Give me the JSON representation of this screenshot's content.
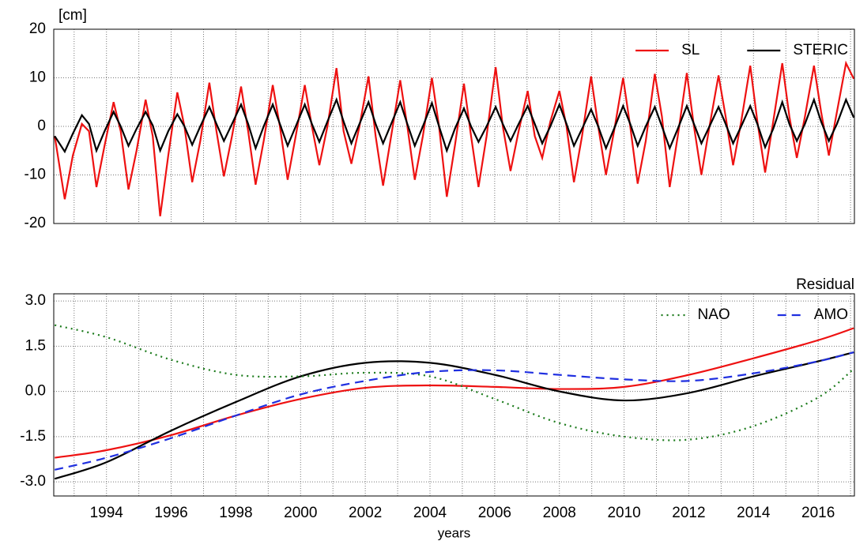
{
  "chart_data": [
    {
      "type": "line",
      "ylabel": "[cm]",
      "xlim": [
        1992.37,
        2017.12
      ],
      "ylim": [
        -20,
        20
      ],
      "yticks": [
        -20,
        -10,
        0,
        10,
        20
      ],
      "xticks": [
        1994,
        1996,
        1998,
        2000,
        2002,
        2004,
        2006,
        2008,
        2010,
        2012,
        2014,
        2016
      ],
      "x_minor_grid": [
        1993,
        1995,
        1997,
        1999,
        2001,
        2003,
        2005,
        2007,
        2009,
        2011,
        2013,
        2015,
        2017
      ],
      "show_xtick_labels": false,
      "grid": true,
      "legend": "upper right",
      "smooth": false,
      "x": [
        1992.4,
        1992.71,
        1992.96,
        1993.24,
        1993.46,
        1993.69,
        1993.94,
        1994.22,
        1994.44,
        1994.68,
        1994.93,
        1995.21,
        1995.43,
        1995.66,
        1995.91,
        1996.19,
        1996.41,
        1996.65,
        1996.9,
        1997.18,
        1997.4,
        1997.63,
        1997.88,
        1998.16,
        1998.38,
        1998.61,
        1998.86,
        1999.14,
        1999.36,
        1999.6,
        1999.85,
        2000.13,
        2000.35,
        2000.58,
        2000.83,
        2001.11,
        2001.33,
        2001.57,
        2001.82,
        2002.1,
        2002.32,
        2002.55,
        2002.8,
        2003.08,
        2003.3,
        2003.53,
        2003.78,
        2004.06,
        2004.28,
        2004.52,
        2004.77,
        2005.05,
        2005.27,
        2005.5,
        2005.75,
        2006.03,
        2006.25,
        2006.49,
        2006.74,
        2007.02,
        2007.24,
        2007.47,
        2007.72,
        2008.0,
        2008.22,
        2008.45,
        2008.7,
        2008.98,
        2009.2,
        2009.44,
        2009.69,
        2009.97,
        2010.19,
        2010.42,
        2010.67,
        2010.95,
        2011.17,
        2011.41,
        2011.66,
        2011.94,
        2012.16,
        2012.39,
        2012.64,
        2012.92,
        2013.14,
        2013.37,
        2013.62,
        2013.9,
        2014.12,
        2014.36,
        2014.61,
        2014.89,
        2015.11,
        2015.34,
        2015.59,
        2015.87,
        2016.09,
        2016.33,
        2016.58,
        2016.86,
        2017.1
      ],
      "series": [
        {
          "name": "SL",
          "color": "#ee1111",
          "linestyle": "solid",
          "values": [
            -2,
            -15,
            -6,
            0.5,
            -1,
            -12.5,
            -4,
            5,
            -1,
            -13,
            -5,
            5.5,
            -2,
            -18.5,
            -6,
            7,
            0,
            -11.5,
            -3,
            9,
            -1,
            -10.3,
            -2,
            8.2,
            -1,
            -12,
            -3,
            8.5,
            0,
            -11,
            -2,
            8.5,
            0,
            -8,
            0,
            12,
            -1,
            -7.7,
            0,
            10.3,
            -2,
            -12.2,
            -2,
            9.5,
            0,
            -11,
            -2,
            10,
            0,
            -14.5,
            -4,
            8.8,
            -2,
            -12.5,
            -2,
            12.2,
            0,
            -9.2,
            -1,
            7.3,
            -2,
            -6.5,
            1,
            7.3,
            0,
            -11.5,
            -2,
            10.3,
            0,
            -10,
            -1,
            10,
            0,
            -11.8,
            -3,
            10.8,
            2,
            -12.5,
            -2,
            11,
            0,
            -10,
            0,
            10.5,
            2,
            -8,
            1,
            12.5,
            1,
            -9.5,
            1,
            13,
            2,
            -6.5,
            2,
            12.5,
            3,
            -6,
            3,
            13,
            9.8
          ]
        },
        {
          "name": "STERIC",
          "color": "#000000",
          "linestyle": "solid",
          "values": [
            -2,
            -5.2,
            -1.5,
            2.3,
            0.5,
            -5,
            -1,
            3,
            0,
            -4,
            -0.5,
            3,
            0.2,
            -5,
            -1,
            2.5,
            0,
            -3.8,
            0,
            4,
            0.5,
            -3,
            0.5,
            4.5,
            0.5,
            -4.5,
            0,
            4.5,
            0.5,
            -4,
            0,
            4.5,
            0.5,
            -3.2,
            1,
            5.5,
            1,
            -3.5,
            0.5,
            5,
            0.5,
            -3.5,
            0.5,
            5,
            0.5,
            -4,
            0,
            4.8,
            0,
            -5,
            -0.5,
            3.7,
            0,
            -3.2,
            0,
            4,
            0.5,
            -3,
            0.5,
            4.2,
            0.5,
            -3.5,
            0,
            4.5,
            0.5,
            -4,
            -0.5,
            3.5,
            0,
            -4.5,
            -0.5,
            4.2,
            0.5,
            -4,
            0,
            4,
            0,
            -4.5,
            -0.5,
            4.2,
            0.5,
            -3.5,
            0,
            4,
            0.5,
            -3.5,
            0,
            4.2,
            0.5,
            -4.3,
            -0.5,
            5,
            0.5,
            -3,
            0.5,
            5.5,
            1,
            -3,
            0.5,
            5.5,
            1.8
          ]
        }
      ]
    },
    {
      "type": "line",
      "annotation": "Residual",
      "xlabel": "years",
      "xlim": [
        1992.37,
        2017.12
      ],
      "ylim": [
        -3.47,
        3.24
      ],
      "yticks": [
        {
          "value": -3,
          "label": "-3.0"
        },
        {
          "value": -1.5,
          "label": "-1.5"
        },
        {
          "value": 0,
          "label": "0.0"
        },
        {
          "value": 1.5,
          "label": "1.5"
        },
        {
          "value": 3,
          "label": "3.0"
        }
      ],
      "xticks": [
        1994,
        1996,
        1998,
        2000,
        2002,
        2004,
        2006,
        2008,
        2010,
        2012,
        2014,
        2016
      ],
      "x_minor_grid": [
        1993,
        1995,
        1997,
        1999,
        2001,
        2003,
        2005,
        2007,
        2009,
        2011,
        2013,
        2015,
        2017
      ],
      "show_xtick_labels": true,
      "grid": true,
      "legend": "upper right",
      "smooth": true,
      "x": [
        1992.4,
        1994,
        1996,
        1998,
        2000,
        2002,
        2004,
        2006,
        2008,
        2010,
        2012,
        2014,
        2016,
        2017.1
      ],
      "series": [
        {
          "color": "#ee1111",
          "linestyle": "solid",
          "values": [
            -2.2,
            -1.95,
            -1.45,
            -0.8,
            -0.25,
            0.12,
            0.2,
            0.15,
            0.08,
            0.15,
            0.55,
            1.1,
            1.7,
            2.1
          ]
        },
        {
          "color": "#000000",
          "linestyle": "solid",
          "values": [
            -2.9,
            -2.35,
            -1.3,
            -0.35,
            0.5,
            0.95,
            0.95,
            0.55,
            0,
            -0.3,
            -0.05,
            0.5,
            1.0,
            1.3
          ]
        },
        {
          "name": "NAO",
          "color": "#1a7a1a",
          "linestyle": "dotted",
          "values": [
            2.2,
            1.8,
            1.05,
            0.55,
            0.5,
            0.62,
            0.5,
            -0.25,
            -1.05,
            -1.5,
            -1.6,
            -1.15,
            -0.2,
            0.75
          ]
        },
        {
          "name": "AMO",
          "color": "#1f2fe0",
          "linestyle": "dashed",
          "values": [
            -2.6,
            -2.2,
            -1.55,
            -0.8,
            -0.1,
            0.35,
            0.65,
            0.7,
            0.55,
            0.4,
            0.35,
            0.6,
            1.0,
            1.3
          ]
        }
      ]
    }
  ]
}
